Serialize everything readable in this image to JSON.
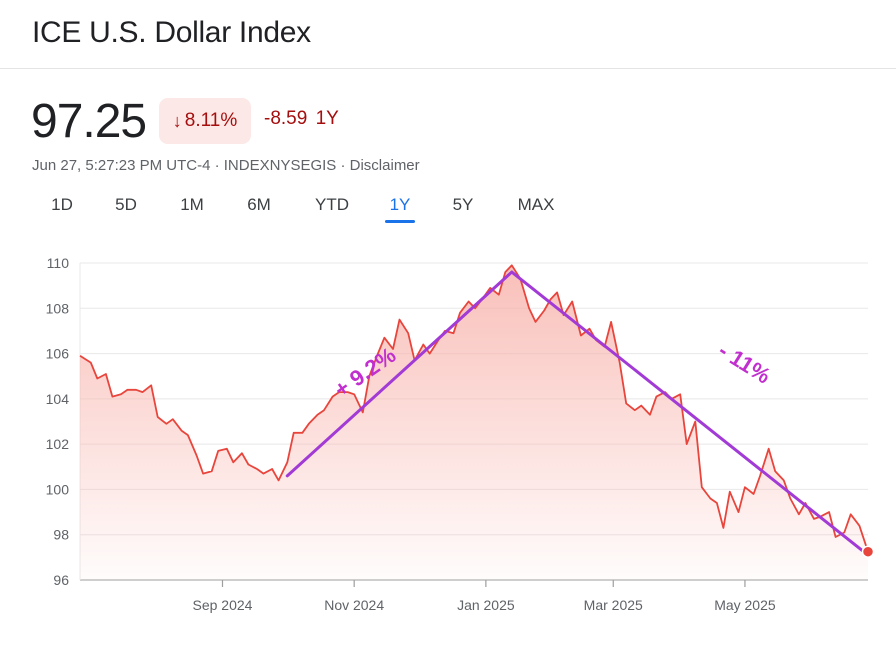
{
  "header": {
    "title": "ICE U.S. Dollar Index",
    "price": "97.25",
    "pct_change": "8.11%",
    "pct_arrow": "↓",
    "abs_change": "-8.59",
    "period": "1Y",
    "meta_timestamp": "Jun 27, 5:27:23 PM UTC-4",
    "meta_sep1": " · ",
    "meta_source": "INDEXNYSEGIS",
    "meta_sep2": " · ",
    "meta_disclaimer": "Disclaimer"
  },
  "tabs": [
    {
      "label": "1D",
      "active": false
    },
    {
      "label": "5D",
      "active": false
    },
    {
      "label": "1M",
      "active": false
    },
    {
      "label": "6M",
      "active": false
    },
    {
      "label": "YTD",
      "active": false
    },
    {
      "label": "1Y",
      "active": true
    },
    {
      "label": "5Y",
      "active": false
    },
    {
      "label": "MAX",
      "active": false
    }
  ],
  "colors": {
    "line": "#e8453c",
    "area_top": "#f8b4ad",
    "trend": "#a23bd6",
    "annotation": "#c12fcf",
    "negative": "#a50e0e",
    "active_tab": "#1a73e8"
  },
  "chart_data": {
    "type": "line",
    "title": "",
    "xlabel": "",
    "ylabel": "",
    "ylim": [
      96,
      110
    ],
    "yticks": [
      96,
      98,
      100,
      102,
      104,
      106,
      108,
      110
    ],
    "xlim": [
      "2024-06-27",
      "2025-06-27"
    ],
    "xticks": [
      {
        "date": "2024-09-01",
        "label": "Sep 2024"
      },
      {
        "date": "2024-11-01",
        "label": "Nov 2024"
      },
      {
        "date": "2025-01-01",
        "label": "Jan 2025"
      },
      {
        "date": "2025-03-01",
        "label": "Mar 2025"
      },
      {
        "date": "2025-05-01",
        "label": "May 2025"
      }
    ],
    "grid": true,
    "series": [
      {
        "points": [
          [
            "2024-06-27",
            105.9
          ],
          [
            "2024-07-02",
            105.6
          ],
          [
            "2024-07-05",
            104.9
          ],
          [
            "2024-07-09",
            105.1
          ],
          [
            "2024-07-12",
            104.1
          ],
          [
            "2024-07-16",
            104.2
          ],
          [
            "2024-07-19",
            104.4
          ],
          [
            "2024-07-23",
            104.4
          ],
          [
            "2024-07-26",
            104.3
          ],
          [
            "2024-07-30",
            104.6
          ],
          [
            "2024-08-02",
            103.2
          ],
          [
            "2024-08-06",
            102.9
          ],
          [
            "2024-08-09",
            103.1
          ],
          [
            "2024-08-13",
            102.6
          ],
          [
            "2024-08-16",
            102.4
          ],
          [
            "2024-08-20",
            101.5
          ],
          [
            "2024-08-23",
            100.7
          ],
          [
            "2024-08-27",
            100.8
          ],
          [
            "2024-08-30",
            101.7
          ],
          [
            "2024-09-03",
            101.8
          ],
          [
            "2024-09-06",
            101.2
          ],
          [
            "2024-09-10",
            101.6
          ],
          [
            "2024-09-13",
            101.1
          ],
          [
            "2024-09-17",
            100.9
          ],
          [
            "2024-09-20",
            100.7
          ],
          [
            "2024-09-24",
            100.9
          ],
          [
            "2024-09-27",
            100.4
          ],
          [
            "2024-10-01",
            101.2
          ],
          [
            "2024-10-04",
            102.5
          ],
          [
            "2024-10-08",
            102.5
          ],
          [
            "2024-10-11",
            102.9
          ],
          [
            "2024-10-15",
            103.3
          ],
          [
            "2024-10-18",
            103.5
          ],
          [
            "2024-10-22",
            104.1
          ],
          [
            "2024-10-25",
            104.3
          ],
          [
            "2024-10-29",
            104.3
          ],
          [
            "2024-11-01",
            104.2
          ],
          [
            "2024-11-05",
            103.4
          ],
          [
            "2024-11-08",
            105.0
          ],
          [
            "2024-11-12",
            106.0
          ],
          [
            "2024-11-15",
            106.7
          ],
          [
            "2024-11-19",
            106.2
          ],
          [
            "2024-11-22",
            107.5
          ],
          [
            "2024-11-26",
            106.9
          ],
          [
            "2024-11-29",
            105.7
          ],
          [
            "2024-12-03",
            106.4
          ],
          [
            "2024-12-06",
            106.0
          ],
          [
            "2024-12-10",
            106.6
          ],
          [
            "2024-12-13",
            107.0
          ],
          [
            "2024-12-17",
            106.9
          ],
          [
            "2024-12-20",
            107.8
          ],
          [
            "2024-12-24",
            108.3
          ],
          [
            "2024-12-27",
            108.0
          ],
          [
            "2024-12-31",
            108.5
          ],
          [
            "2025-01-03",
            108.9
          ],
          [
            "2025-01-07",
            108.6
          ],
          [
            "2025-01-10",
            109.6
          ],
          [
            "2025-01-13",
            109.9
          ],
          [
            "2025-01-17",
            109.3
          ],
          [
            "2025-01-21",
            108.0
          ],
          [
            "2025-01-24",
            107.4
          ],
          [
            "2025-01-28",
            107.9
          ],
          [
            "2025-01-31",
            108.4
          ],
          [
            "2025-02-03",
            108.7
          ],
          [
            "2025-02-06",
            107.7
          ],
          [
            "2025-02-10",
            108.3
          ],
          [
            "2025-02-14",
            106.8
          ],
          [
            "2025-02-18",
            107.1
          ],
          [
            "2025-02-21",
            106.6
          ],
          [
            "2025-02-25",
            106.3
          ],
          [
            "2025-02-28",
            107.4
          ],
          [
            "2025-03-04",
            105.6
          ],
          [
            "2025-03-07",
            103.8
          ],
          [
            "2025-03-11",
            103.5
          ],
          [
            "2025-03-14",
            103.7
          ],
          [
            "2025-03-18",
            103.3
          ],
          [
            "2025-03-21",
            104.1
          ],
          [
            "2025-03-25",
            104.3
          ],
          [
            "2025-03-28",
            104.0
          ],
          [
            "2025-04-01",
            104.2
          ],
          [
            "2025-04-04",
            102.0
          ],
          [
            "2025-04-08",
            103.0
          ],
          [
            "2025-04-11",
            100.1
          ],
          [
            "2025-04-15",
            99.6
          ],
          [
            "2025-04-18",
            99.4
          ],
          [
            "2025-04-21",
            98.3
          ],
          [
            "2025-04-24",
            99.9
          ],
          [
            "2025-04-28",
            99.0
          ],
          [
            "2025-05-01",
            100.1
          ],
          [
            "2025-05-05",
            99.8
          ],
          [
            "2025-05-08",
            100.6
          ],
          [
            "2025-05-12",
            101.8
          ],
          [
            "2025-05-15",
            100.8
          ],
          [
            "2025-05-19",
            100.4
          ],
          [
            "2025-05-22",
            99.6
          ],
          [
            "2025-05-26",
            98.9
          ],
          [
            "2025-05-29",
            99.4
          ],
          [
            "2025-06-02",
            98.7
          ],
          [
            "2025-06-05",
            98.8
          ],
          [
            "2025-06-09",
            99.0
          ],
          [
            "2025-06-12",
            97.9
          ],
          [
            "2025-06-16",
            98.1
          ],
          [
            "2025-06-19",
            98.9
          ],
          [
            "2025-06-23",
            98.4
          ],
          [
            "2025-06-27",
            97.25
          ]
        ]
      }
    ],
    "trend_lines": [
      {
        "from": [
          "2024-10-01",
          100.6
        ],
        "to": [
          "2025-01-13",
          109.6
        ]
      },
      {
        "from": [
          "2025-01-13",
          109.6
        ],
        "to": [
          "2025-06-27",
          97.1
        ]
      }
    ],
    "annotations": [
      {
        "text": "+ 9.2%",
        "at": [
          "2024-11-08",
          104.9
        ],
        "rotate": -35
      },
      {
        "text": "- 11%",
        "at": [
          "2025-04-29",
          105.3
        ],
        "rotate": 32
      }
    ],
    "end_marker": [
      "2025-06-27",
      97.25
    ]
  }
}
